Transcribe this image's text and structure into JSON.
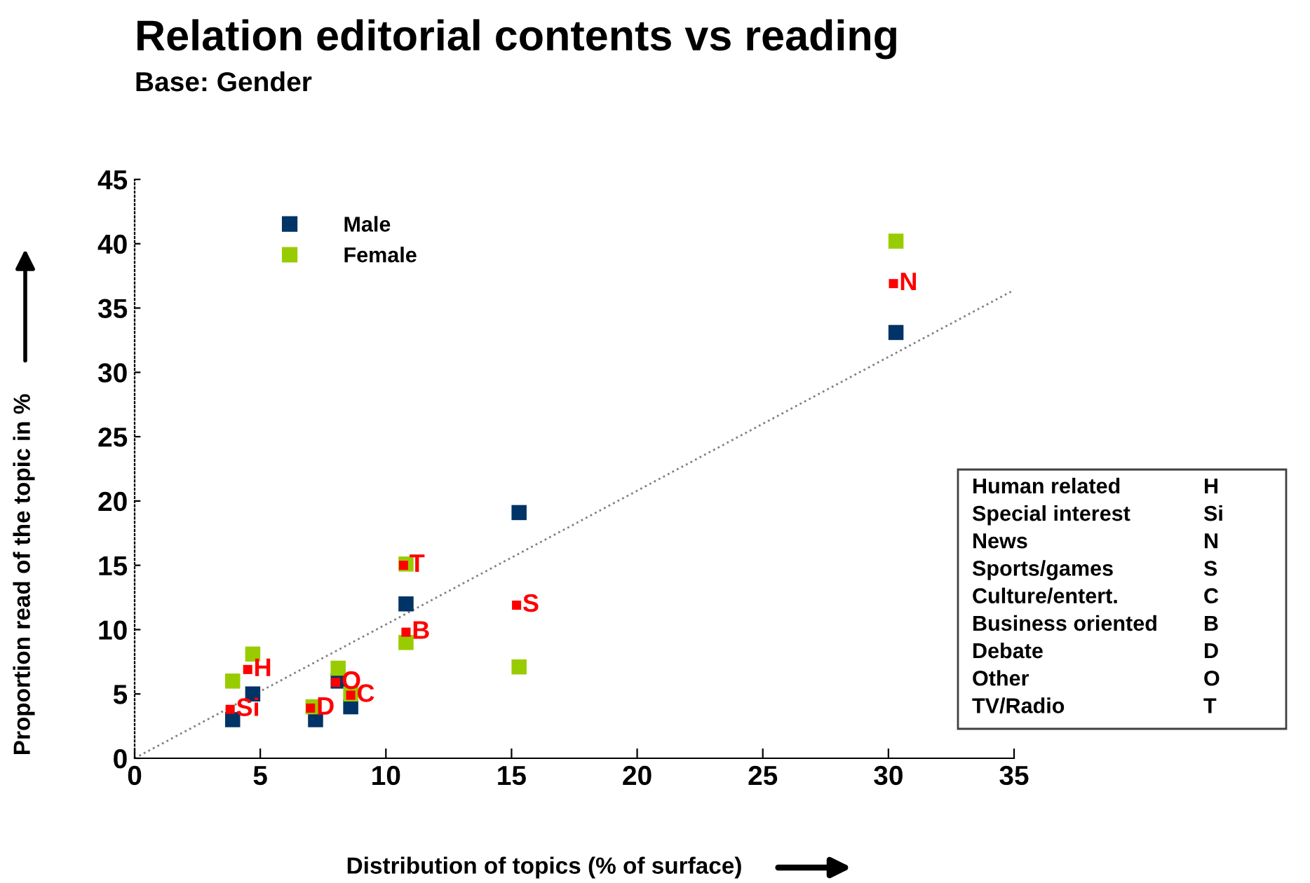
{
  "chart_data": {
    "type": "scatter",
    "title": "Relation editorial contents vs reading",
    "subtitle": "Base: Gender",
    "xlabel": "Distribution of topics (% of surface)",
    "ylabel": "Proportion read of the topic in %",
    "xlim": [
      0,
      35
    ],
    "xticks": [
      0,
      5,
      10,
      15,
      20,
      25,
      30,
      35
    ],
    "ylim": [
      0,
      45
    ],
    "yticks": [
      0,
      5,
      10,
      15,
      20,
      25,
      30,
      35,
      40,
      45
    ],
    "grid": false,
    "legend": "top left",
    "marker": "square",
    "series": [
      {
        "name": "Male",
        "color": "#003366",
        "x": [
          3.9,
          4.7,
          7.2,
          8.1,
          8.6,
          10.8,
          15.3,
          30.3
        ],
        "values": [
          3.0,
          5.0,
          3.0,
          6.0,
          4.0,
          12.0,
          19.1,
          33.1
        ]
      },
      {
        "name": "Female",
        "color": "#99cc00",
        "x": [
          3.9,
          4.7,
          7.1,
          8.1,
          8.6,
          10.8,
          10.8,
          15.3,
          30.3
        ],
        "values": [
          6.0,
          8.1,
          4.0,
          7.0,
          5.0,
          15.1,
          9.0,
          7.1,
          40.2
        ]
      },
      {
        "color": "#ff0000",
        "x": [
          4.5,
          3.8,
          30.2,
          15.2,
          8.6,
          10.8,
          7.0,
          8.0,
          10.7
        ],
        "values": [
          6.9,
          3.8,
          36.9,
          11.9,
          4.9,
          9.8,
          3.9,
          5.9,
          15.0
        ]
      },
      {
        "type": "line",
        "color": "#808080",
        "line_style": "dotted",
        "marker": "none",
        "x": [
          0,
          35
        ],
        "values": [
          0,
          36.4
        ]
      }
    ],
    "annotations": [
      {
        "text": "H",
        "x": 4.5,
        "y": 6.9
      },
      {
        "text": "Si",
        "x": 3.8,
        "y": 3.8
      },
      {
        "text": "N",
        "x": 30.2,
        "y": 36.9
      },
      {
        "text": "S",
        "x": 15.2,
        "y": 11.9
      },
      {
        "text": "C",
        "x": 8.6,
        "y": 4.9
      },
      {
        "text": "B",
        "x": 10.8,
        "y": 9.8
      },
      {
        "text": "D",
        "x": 7.0,
        "y": 3.9
      },
      {
        "text": "O",
        "x": 8.0,
        "y": 5.9
      },
      {
        "text": "T",
        "x": 10.7,
        "y": 15.0
      },
      "Human related",
      "H",
      "Special interest",
      "Si",
      "News",
      "N",
      "Sports/games",
      "S",
      "Culture/entert.",
      "C",
      "Business oriented",
      "B",
      "Debate",
      "D",
      "Other",
      "O",
      "TV/Radio",
      "T"
    ]
  }
}
